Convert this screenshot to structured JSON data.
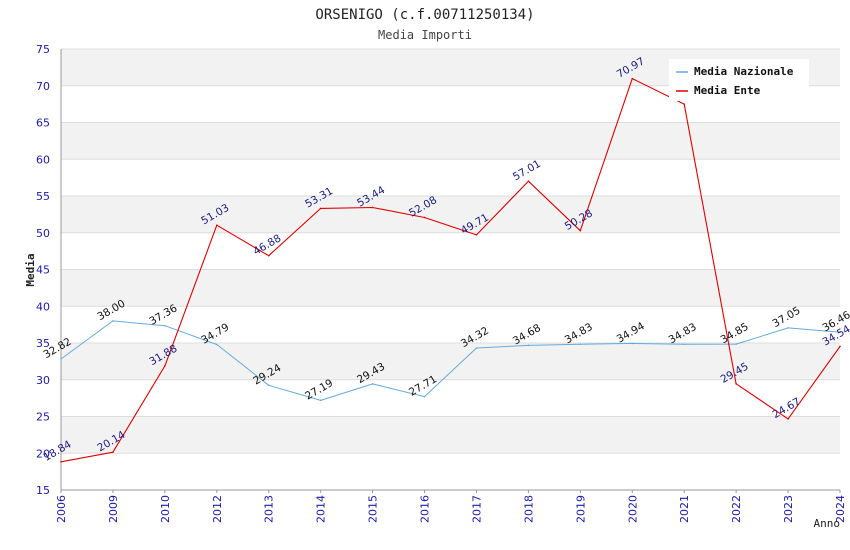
{
  "chart_data": {
    "type": "line",
    "title": "ORSENIGO (c.f.00711250134)",
    "subtitle": "Media Importi",
    "xlabel": "Anno",
    "ylabel": "Media",
    "ylim": [
      15,
      75
    ],
    "yticks": [
      15,
      20,
      25,
      30,
      35,
      40,
      45,
      50,
      55,
      60,
      65,
      70,
      75
    ],
    "categories": [
      "2006",
      "2009",
      "2010",
      "2012",
      "2013",
      "2014",
      "2015",
      "2016",
      "2017",
      "2018",
      "2019",
      "2020",
      "2021",
      "2022",
      "2023",
      "2024"
    ],
    "grid": true,
    "legend_position": "top-right",
    "series": [
      {
        "name": "Media Nazionale",
        "color": "#66aadd",
        "values": [
          32.82,
          38.0,
          37.36,
          34.79,
          29.24,
          27.19,
          29.43,
          27.71,
          34.32,
          34.68,
          34.83,
          34.94,
          34.83,
          34.85,
          37.05,
          36.46
        ],
        "labels": [
          "32.82",
          "38.00",
          "37.36",
          "34.79",
          "29.24",
          "27.19",
          "29.43",
          "27.71",
          "34.32",
          "34.68",
          "34.83",
          "34.94",
          "34.83",
          "34.85",
          "37.05",
          "36.46"
        ]
      },
      {
        "name": "Media Ente",
        "color": "#dd0000",
        "values": [
          18.84,
          20.14,
          31.88,
          51.03,
          46.88,
          53.31,
          53.44,
          52.08,
          49.71,
          57.01,
          50.28,
          70.97,
          67.5,
          29.45,
          24.67,
          34.54
        ],
        "labels": [
          "18.84",
          "20.14",
          "31.88",
          "51.03",
          "46.88",
          "53.31",
          "53.44",
          "52.08",
          "49.71",
          "57.01",
          "50.28",
          "70.97",
          "",
          "29.45",
          "24.67",
          "34.54"
        ]
      }
    ]
  },
  "colors": {
    "band": "#f2f2f2",
    "grid": "#dddddd",
    "axis": "#999999",
    "tick_text": "#1a1aa6"
  }
}
